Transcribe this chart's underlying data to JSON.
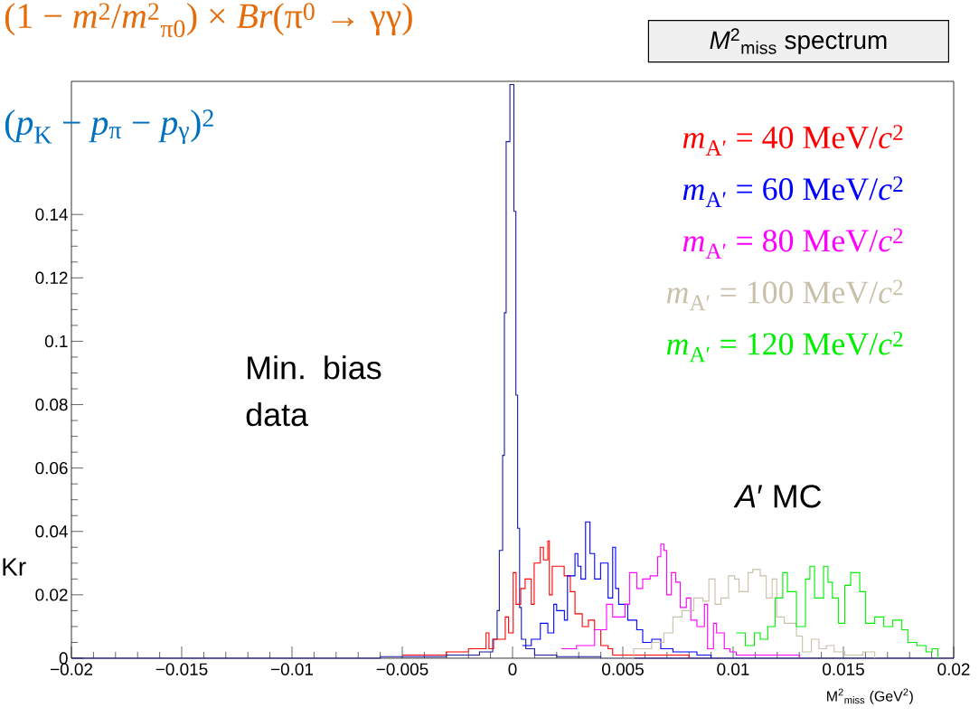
{
  "chart_data": {
    "type": "step",
    "title": "*M*$^{2}$$_{miss}$ spectrum",
    "xlabel": "M$^{2}$$_{miss}$ (GeV$^{2}$)",
    "annotations": [
      "(1 − *m*$^{2}$/*m*$^{2}$$_{π0}$) × *Br*(π$^{0}$ → γγ)",
      "(*p*$_{K}$ − *p*$_{π}$ − *p*$_{γ}$)$^{2}$",
      "Kr",
      "Min. bias data",
      "*A*′ MC"
    ],
    "xlim": [
      -0.02,
      0.02
    ],
    "ylim": [
      0,
      0.182
    ],
    "xticks": [
      {
        "value": -0.02,
        "label": "−0.02"
      },
      {
        "value": -0.015,
        "label": "−0.015"
      },
      {
        "value": -0.01,
        "label": "−0.01"
      },
      {
        "value": -0.005,
        "label": "−0.005"
      },
      0,
      0.005,
      0.01,
      0.015,
      0.02
    ],
    "yticks": [
      0,
      0.02,
      0.04,
      0.06,
      0.08,
      0.1,
      0.12,
      0.14
    ],
    "legend": "top right",
    "series": [
      {
        "color": "#1a1aa0",
        "x": [
          -0.02,
          -0.006,
          -0.003,
          -0.0015,
          -0.0009,
          -0.0007,
          -0.0006,
          -0.00045,
          -0.00037,
          -0.00029,
          -0.00012,
          6e-05,
          0.00015,
          0.00023,
          0.00032,
          0.0004,
          0.0006,
          0.001,
          0.002,
          0.004,
          0.02
        ],
        "values": [
          0,
          0.0005,
          0.001,
          0.002,
          0.006,
          0.015,
          0.034,
          0.064,
          0.109,
          0.163,
          0.181,
          0.141,
          0.083,
          0.041,
          0.016,
          0.006,
          0.003,
          0.001,
          0.0005,
          0,
          0
        ]
      },
      {
        "name": "*m*$_{A′}$ = 40 MeV/*c*$^{2}$",
        "color": "#ff0000",
        "x": [
          -0.005,
          -0.003,
          -0.002,
          -0.0012,
          -0.00107,
          -0.00086,
          -0.00033,
          -0.00018,
          3e-05,
          0.00016,
          0.00037,
          0.00057,
          0.00085,
          0.00098,
          0.00126,
          0.0014,
          0.0016,
          0.00167,
          0.0018,
          0.00234,
          0.00262,
          0.00283,
          0.00316,
          0.00344,
          0.00372,
          0.004,
          0.00433,
          0.00454,
          0.0051,
          0.007,
          0.008
        ],
        "values": [
          0.001,
          0.002,
          0.003,
          0.008,
          0.003,
          0.006,
          0.013,
          0.008,
          0.027,
          0.017,
          0.022,
          0.025,
          0.017,
          0.03,
          0.035,
          0.031,
          0.037,
          0.02,
          0.029,
          0.026,
          0.021,
          0.014,
          0.01,
          0.012,
          0.009,
          0.004,
          0.003,
          0.001,
          0.001,
          0.001,
          0
        ]
      },
      {
        "name": "*m*$_{A′}$ = 60 MeV/*c*$^{2}$",
        "color": "#0000ff",
        "x": [
          0.00044,
          0.00085,
          0.00126,
          0.0016,
          0.00187,
          0.002,
          0.00235,
          0.00249,
          0.00283,
          0.00296,
          0.0031,
          0.00331,
          0.00351,
          0.00372,
          0.00399,
          0.00433,
          0.00454,
          0.00467,
          0.00481,
          0.00522,
          0.00563,
          0.0059,
          0.00631,
          0.00672,
          0.00727,
          0.00836,
          0.009
        ],
        "values": [
          0.004,
          0.006,
          0.011,
          0.008,
          0.017,
          0.015,
          0.012,
          0.026,
          0.033,
          0.029,
          0.025,
          0.043,
          0.033,
          0.025,
          0.03,
          0.019,
          0.035,
          0.022,
          0.017,
          0.012,
          0.009,
          0.005,
          0.006,
          0.003,
          0.002,
          0.001,
          0
        ]
      },
      {
        "name": "*m*$_{A′}$ = 80 MeV/*c*$^{2}$",
        "color": "#ff00ff",
        "x": [
          0.00221,
          0.0029,
          0.00372,
          0.00426,
          0.00454,
          0.0051,
          0.0053,
          0.00563,
          0.0059,
          0.00624,
          0.00658,
          0.00672,
          0.00686,
          0.00699,
          0.0072,
          0.0074,
          0.0076,
          0.00788,
          0.00808,
          0.00836,
          0.0087,
          0.00884,
          0.00911,
          0.00925,
          0.0096,
          0.00986,
          0.01014,
          0.012,
          0.013
        ],
        "values": [
          0.003,
          0.004,
          0.009,
          0.017,
          0.013,
          0.017,
          0.027,
          0.022,
          0.025,
          0.026,
          0.032,
          0.036,
          0.034,
          0.02,
          0.027,
          0.024,
          0.016,
          0.019,
          0.012,
          0.01,
          0.017,
          0.003,
          0.011,
          0.008,
          0.003,
          0.002,
          0.001,
          0.001,
          0
        ]
      },
      {
        "name": "*m*$_{A′}$ = 100 MeV/*c*$^{2}$",
        "color": "#c8c0a8",
        "x": [
          0.004,
          0.00549,
          0.00631,
          0.00686,
          0.00727,
          0.00768,
          0.00822,
          0.00863,
          0.0089,
          0.00918,
          0.00945,
          0.00979,
          0.01007,
          0.01027,
          0.01068,
          0.01089,
          0.01123,
          0.0115,
          0.01177,
          0.01198,
          0.01232,
          0.01287,
          0.01314,
          0.01355,
          0.01389,
          0.01423,
          0.01458,
          0.01506,
          0.01588,
          0.01642
        ],
        "values": [
          0,
          0.003,
          0.005,
          0.008,
          0.013,
          0.015,
          0.019,
          0.018,
          0.025,
          0.017,
          0.019,
          0.026,
          0.025,
          0.021,
          0.027,
          0.028,
          0.026,
          0.019,
          0.025,
          0.013,
          0.011,
          0.007,
          0.002,
          0.006,
          0.003,
          0.004,
          0.002,
          0.001,
          0.002,
          0
        ]
      },
      {
        "name": "*m*$_{A′}$ = 120 MeV/*c*$^{2}$",
        "color": "#00ee00",
        "x": [
          0.01014,
          0.01055,
          0.01096,
          0.01123,
          0.01157,
          0.01191,
          0.01225,
          0.01246,
          0.01287,
          0.01328,
          0.01348,
          0.01369,
          0.0141,
          0.0143,
          0.0145,
          0.01478,
          0.01506,
          0.01533,
          0.01574,
          0.01601,
          0.01642,
          0.01683,
          0.01724,
          0.01765,
          0.01792,
          0.01833,
          0.01874,
          0.01902,
          0.01929
        ],
        "values": [
          0.008,
          0.004,
          0.008,
          0.006,
          0.01,
          0.019,
          0.027,
          0.021,
          0.01,
          0.025,
          0.029,
          0.019,
          0.029,
          0.024,
          0.019,
          0.011,
          0.023,
          0.027,
          0.021,
          0.011,
          0.013,
          0.01,
          0.012,
          0.009,
          0.005,
          0.004,
          0.002,
          0.003,
          0
        ]
      }
    ]
  }
}
